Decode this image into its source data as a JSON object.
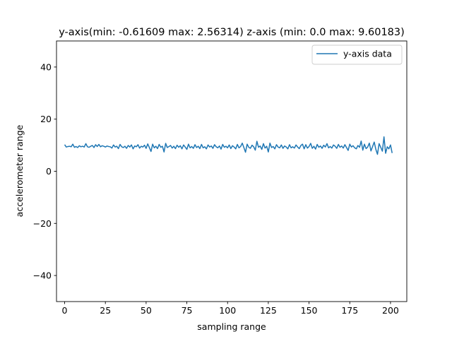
{
  "chart_data": {
    "type": "line",
    "title": "y-axis(min: -0.61609  max: 2.56314) z-axis (min: 0.0 max: 9.60183)",
    "xlabel": "sampling range",
    "ylabel": "accelerometer range",
    "xlim": [
      -5,
      210
    ],
    "ylim": [
      -50,
      50
    ],
    "xticks": [
      0,
      25,
      50,
      75,
      100,
      125,
      150,
      175,
      200
    ],
    "yticks": [
      -40,
      -20,
      0,
      20,
      40
    ],
    "xtick_labels": [
      "0",
      "25",
      "50",
      "75",
      "100",
      "125",
      "150",
      "175",
      "200"
    ],
    "ytick_labels": [
      "−40",
      "−20",
      "0",
      "20",
      "40"
    ],
    "legend_position": "upper right",
    "series": [
      {
        "name": "y-axis data",
        "color": "#1f77b4",
        "x_start": 0,
        "x_step": 1,
        "values": [
          10.2,
          9.3,
          9.5,
          9.6,
          9.4,
          10.4,
          9.2,
          9.5,
          9.1,
          9.8,
          9.4,
          9.6,
          9.3,
          10.6,
          9.4,
          9.2,
          9.6,
          9.9,
          9.1,
          10.2,
          9.5,
          10.3,
          9.4,
          9.8,
          9.6,
          9.3,
          9.7,
          9.5,
          9.4,
          8.9,
          10.1,
          9.3,
          9.6,
          8.7,
          10.3,
          9.4,
          9.1,
          9.6,
          8.8,
          9.9,
          9.3,
          10.1,
          8.6,
          9.7,
          9.4,
          10.2,
          8.9,
          9.6,
          9.3,
          10.0,
          8.8,
          10.5,
          9.1,
          7.6,
          10.4,
          9.0,
          9.6,
          8.7,
          10.3,
          9.2,
          9.6,
          7.4,
          10.7,
          9.1,
          9.5,
          9.9,
          8.9,
          9.6,
          8.7,
          10.0,
          9.2,
          9.8,
          8.6,
          10.1,
          9.3,
          8.4,
          10.4,
          9.0,
          9.5,
          8.8,
          10.2,
          9.1,
          9.6,
          8.7,
          10.3,
          9.0,
          9.4,
          8.6,
          10.1,
          9.3,
          9.7,
          8.8,
          10.2,
          9.4,
          9.0,
          9.7,
          8.5,
          10.3,
          9.2,
          9.6,
          9.0,
          10.1,
          8.7,
          9.8,
          9.3,
          8.6,
          10.3,
          9.0,
          9.5,
          10.8,
          9.1,
          7.3,
          10.4,
          9.2,
          8.8,
          10.0,
          9.4,
          8.1,
          11.5,
          9.2,
          9.7,
          8.4,
          10.6,
          8.9,
          9.6,
          7.4,
          10.8,
          9.1,
          9.5,
          8.6,
          10.2,
          9.3,
          9.0,
          10.1,
          8.8,
          9.7,
          9.3,
          8.6,
          10.2,
          9.0,
          9.4,
          8.9,
          10.1,
          9.3,
          8.7,
          9.9,
          10.4,
          8.6,
          10.2,
          8.9,
          9.5,
          10.7,
          8.8,
          9.6,
          8.5,
          10.3,
          9.2,
          9.7,
          8.8,
          10.0,
          9.3,
          10.6,
          9.0,
          9.5,
          8.9,
          10.1,
          9.6,
          8.8,
          10.3,
          9.2,
          9.7,
          8.9,
          10.2,
          9.1,
          8.0,
          10.4,
          9.3,
          9.8,
          9.0,
          8.6,
          9.9,
          9.2,
          11.6,
          8.1,
          10.4,
          8.7,
          9.3,
          10.8,
          7.8,
          9.5,
          11.2,
          8.4,
          6.5,
          10.6,
          9.2,
          7.7,
          13.2,
          6.9,
          9.4,
          8.6,
          10.1,
          7.0
        ]
      }
    ]
  }
}
